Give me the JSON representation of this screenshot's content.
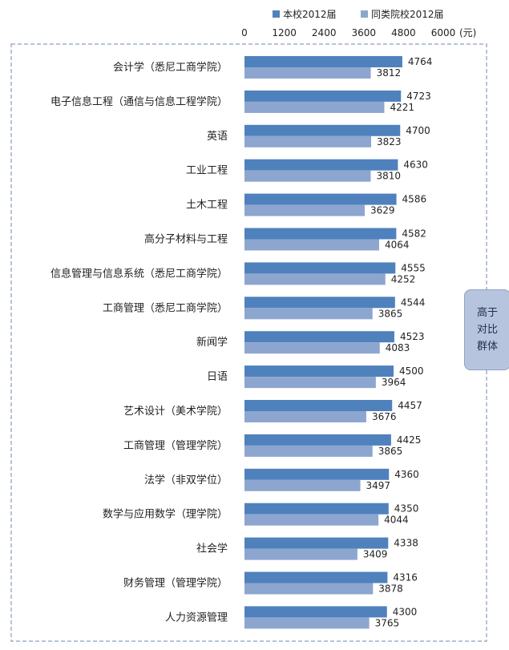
{
  "chart_data": {
    "type": "bar",
    "orientation": "horizontal",
    "title": "",
    "xlabel": "",
    "unit_label": "(元)",
    "xlim": [
      0,
      6000
    ],
    "x_ticks": [
      0,
      1200,
      2400,
      3600,
      4800,
      6000
    ],
    "x_tick_labels": [
      "0",
      "1200",
      "2400",
      "3600",
      "4800",
      "6000"
    ],
    "x_axis_position": "top",
    "grid": false,
    "legend_position": "top",
    "categories": [
      "会计学（悉尼工商学院）",
      "电子信息工程（通信与信息工程学院）",
      "英语",
      "工业工程",
      "土木工程",
      "高分子材料与工程",
      "信息管理与信息系统（悉尼工商学院）",
      "工商管理（悉尼工商学院）",
      "新闻学",
      "日语",
      "艺术设计（美术学院）",
      "工商管理（管理学院）",
      "法学（非双学位）",
      "数学与应用数学（理学院）",
      "社会学",
      "财务管理（管理学院）",
      "人力资源管理"
    ],
    "series": [
      {
        "name": "本校2012届",
        "color": "#4f81bd",
        "values": [
          4764,
          4723,
          4700,
          4630,
          4586,
          4582,
          4555,
          4544,
          4523,
          4500,
          4457,
          4425,
          4360,
          4350,
          4338,
          4316,
          4300
        ]
      },
      {
        "name": "同类院校2012届",
        "color": "#8da6cf",
        "values": [
          3812,
          4221,
          3823,
          3810,
          3629,
          4064,
          4252,
          3865,
          4083,
          3964,
          3676,
          3865,
          3497,
          4044,
          3409,
          3878,
          3765
        ]
      }
    ],
    "annotation": "高于对比群体"
  }
}
